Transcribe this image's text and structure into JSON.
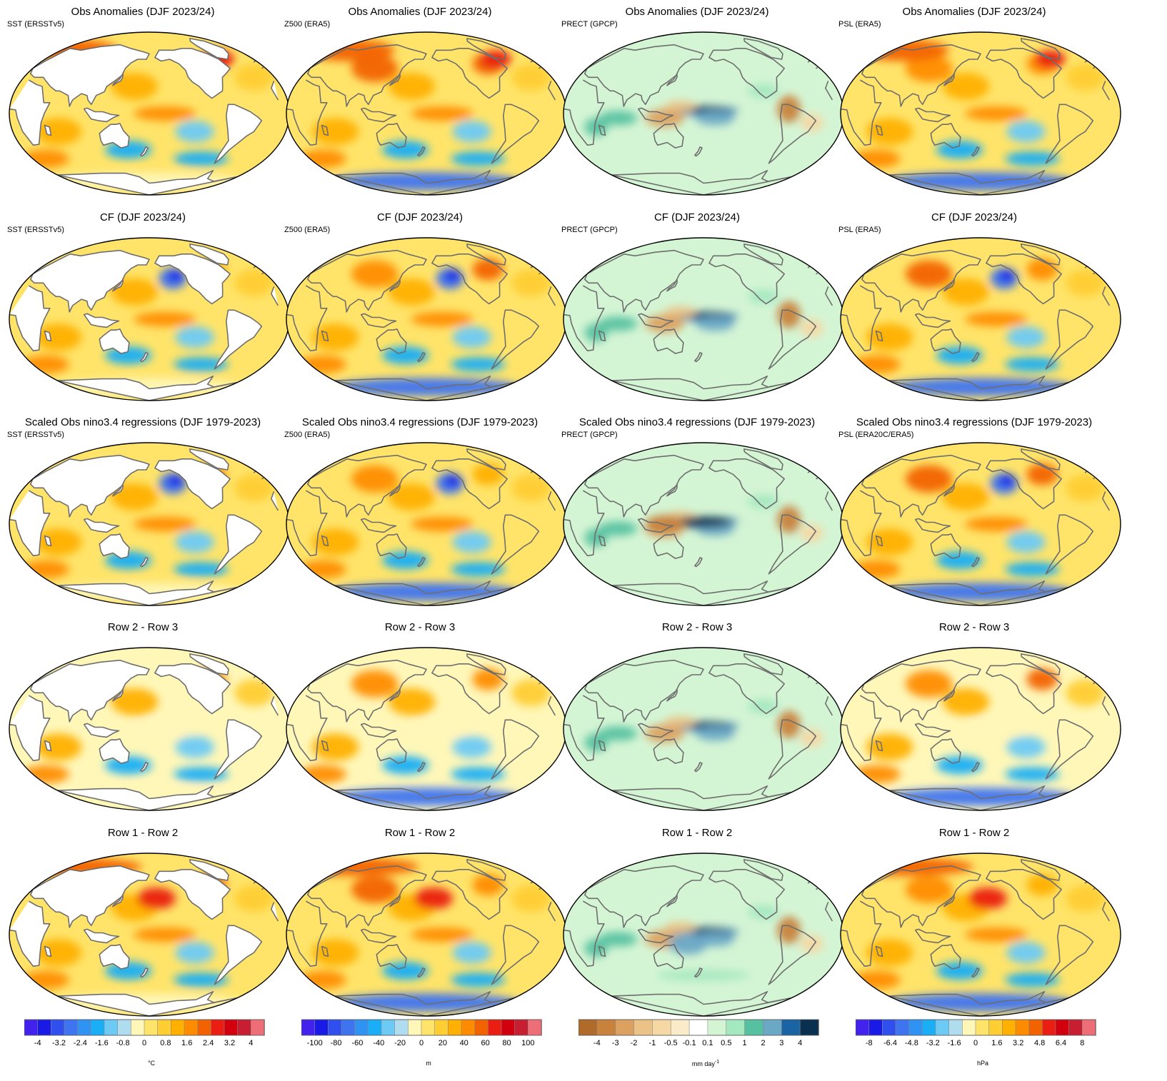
{
  "chart_data": {
    "type": "heatmap",
    "description_rows": [
      "Obs Anomalies (DJF 2023/24)",
      "CF (DJF 2023/24)",
      "Scaled Obs nino3.4 regressions (DJF 1979-2023)",
      "Row 2 - Row 3",
      "Row 1 - Row 2"
    ],
    "variables": [
      "SST",
      "Z500",
      "PRECT",
      "PSL"
    ],
    "rows": [
      {
        "title": "Obs Anomalies (DJF 2023/24)",
        "labels": [
          "SST (ERSSTv5)",
          "Z500 (ERA5)",
          "PRECT (GPCP)",
          "PSL (ERA5)"
        ]
      },
      {
        "title": "CF (DJF 2023/24)",
        "labels": [
          "SST (ERSSTv5)",
          "Z500 (ERA5)",
          "PRECT (GPCP)",
          "PSL (ERA5)"
        ]
      },
      {
        "title": "Scaled Obs nino3.4 regressions (DJF 1979-2023)",
        "labels": [
          "SST (ERSSTv5)",
          "Z500 (ERA5)",
          "PRECT (GPCP)",
          "PSL (ERA20C/ERA5)"
        ]
      },
      {
        "title": "Row 2 - Row 3",
        "labels": [
          "",
          "",
          "",
          ""
        ]
      },
      {
        "title": "Row 1 - Row 2",
        "labels": [
          "",
          "",
          "",
          ""
        ]
      }
    ],
    "colorbars": [
      {
        "variable": "SST",
        "units": "°C",
        "units_sup": "",
        "ticks": [
          "-4",
          "-3.2",
          "-2.4",
          "-1.6",
          "-0.8",
          "0",
          "0.8",
          "1.6",
          "2.4",
          "3.2",
          "4"
        ],
        "colors": [
          "#4422ee",
          "#1a1ae6",
          "#3050ee",
          "#3f74f0",
          "#2e93f3",
          "#19aef6",
          "#6ccaf5",
          "#b0dcf0",
          "#fff7b8",
          "#ffe469",
          "#ffce33",
          "#ffb000",
          "#ff8c00",
          "#f26300",
          "#ea1e12",
          "#d2000e",
          "#c81e32",
          "#ee6e78"
        ]
      },
      {
        "variable": "Z500",
        "units": "m",
        "units_sup": "",
        "ticks": [
          "-100",
          "-80",
          "-60",
          "-40",
          "-20",
          "0",
          "20",
          "40",
          "60",
          "80",
          "100"
        ],
        "colors": [
          "#4422ee",
          "#1a1ae6",
          "#3050ee",
          "#3f74f0",
          "#2e93f3",
          "#19aef6",
          "#6ccaf5",
          "#b0dcf0",
          "#fff7b8",
          "#ffe469",
          "#ffce33",
          "#ffb000",
          "#ff8c00",
          "#f26300",
          "#ea1e12",
          "#d2000e",
          "#c81e32",
          "#ee6e78"
        ]
      },
      {
        "variable": "PRECT",
        "units": "mm day",
        "units_sup": "-1",
        "ticks": [
          "-4",
          "-3",
          "-2",
          "-1",
          "-0.5",
          "-0.1",
          "0.1",
          "0.5",
          "1",
          "2",
          "3",
          "4"
        ],
        "colors": [
          "#b06a2a",
          "#c8823c",
          "#dca160",
          "#ecc386",
          "#f5d8a4",
          "#faecc8",
          "#ffffff",
          "#d4f5d4",
          "#a4e8c0",
          "#55c1a0",
          "#6aa8c6",
          "#1a64a4",
          "#0a3050"
        ]
      },
      {
        "variable": "PSL",
        "units": "hPa",
        "units_sup": "",
        "ticks": [
          "-8",
          "-6.4",
          "-4.8",
          "-3.2",
          "-1.6",
          "0",
          "1.6",
          "3.2",
          "4.8",
          "6.4",
          "8"
        ],
        "colors": [
          "#4422ee",
          "#1a1ae6",
          "#3050ee",
          "#3f74f0",
          "#2e93f3",
          "#19aef6",
          "#6ccaf5",
          "#b0dcf0",
          "#fff7b8",
          "#ffe469",
          "#ffce33",
          "#ffb000",
          "#ff8c00",
          "#f26300",
          "#ea1e12",
          "#d2000e",
          "#c81e32",
          "#ee6e78"
        ]
      }
    ]
  }
}
